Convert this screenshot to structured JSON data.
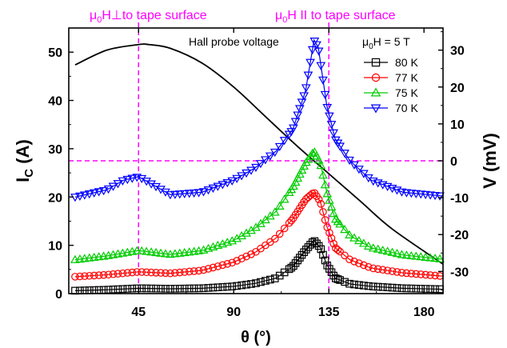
{
  "chart_data": {
    "type": "scatter",
    "xlabel": "θ (°)",
    "ylabel_left": "I",
    "ylabel_left_sub": "C",
    "ylabel_left_unit": " (A)",
    "ylabel_right": "V (mV)",
    "xlim": [
      12,
      189
    ],
    "ylim_left": [
      0,
      55
    ],
    "ylim_right": [
      -36,
      36
    ],
    "x_ticks": [
      45,
      90,
      135,
      180
    ],
    "x_tick_labels": [
      "45",
      "90",
      "135",
      "180"
    ],
    "y_left_ticks": [
      0,
      10,
      20,
      30,
      40,
      50
    ],
    "y_left_tick_labels": [
      "0",
      "10",
      "20",
      "30",
      "40",
      "50"
    ],
    "y_right_ticks": [
      30,
      20,
      10,
      0,
      -10,
      -20,
      -30
    ],
    "y_right_tick_labels": [
      "30",
      "20",
      "10",
      "0",
      "-10",
      "-20",
      "-30"
    ],
    "annotations": {
      "perp_mu": "μ",
      "perp_sub": "0",
      "perp_text": "H⊥to tape surface",
      "par_mu": "μ",
      "par_sub": "0",
      "par_text": "H II to tape surface",
      "hall_label": "Hall probe voltage"
    },
    "reference_lines": {
      "vertical_x": [
        45,
        135
      ],
      "horizontal_y_right": 0,
      "color": "#ff00ff"
    },
    "legend": {
      "title_mu": "μ",
      "title_sub": "0",
      "title_text": "H = 5 T",
      "position": "top-right"
    },
    "series": [
      {
        "name": "80 K",
        "marker": "square",
        "color": "#000000",
        "x": [
          15,
          30,
          45,
          60,
          75,
          90,
          100,
          110,
          118,
          124,
          128,
          131,
          134,
          138,
          145,
          155,
          170,
          189
        ],
        "y": [
          0.6,
          0.8,
          1.1,
          1.0,
          1.1,
          1.5,
          2.1,
          3.2,
          5.6,
          9.0,
          11.0,
          9.5,
          6.0,
          3.2,
          2.0,
          1.5,
          1.1,
          0.9
        ]
      },
      {
        "name": "77 K",
        "marker": "circle",
        "color": "#ff0000",
        "x": [
          15,
          30,
          45,
          60,
          75,
          90,
          100,
          110,
          118,
          124,
          128,
          131,
          134,
          138,
          145,
          155,
          170,
          189
        ],
        "y": [
          3.5,
          3.9,
          4.5,
          4.2,
          4.8,
          6.5,
          8.5,
          11.5,
          15.5,
          19.5,
          21.0,
          19.0,
          14.0,
          9.5,
          7.0,
          5.3,
          4.3,
          3.6
        ]
      },
      {
        "name": "75 K",
        "marker": "triangle-up",
        "color": "#00cc00",
        "x": [
          15,
          30,
          45,
          60,
          75,
          90,
          100,
          110,
          118,
          124,
          128,
          131,
          134,
          138,
          145,
          155,
          170,
          189
        ],
        "y": [
          7.0,
          7.8,
          8.9,
          8.1,
          8.9,
          11.0,
          13.5,
          17.0,
          22.0,
          27.0,
          29.5,
          27.0,
          21.0,
          15.5,
          12.0,
          9.5,
          8.0,
          7.1
        ]
      },
      {
        "name": "70 K",
        "marker": "triangle-down",
        "color": "#0000ff",
        "x": [
          15,
          30,
          38,
          45,
          50,
          60,
          75,
          90,
          100,
          110,
          118,
          124,
          128,
          130,
          132,
          134,
          138,
          145,
          155,
          170,
          189
        ],
        "y": [
          20.0,
          21.5,
          23.5,
          24.2,
          23.0,
          20.5,
          21.0,
          23.5,
          26.0,
          29.5,
          34.0,
          42.0,
          52.5,
          51.0,
          45.0,
          39.0,
          32.0,
          27.5,
          23.5,
          21.0,
          20.2
        ]
      }
    ],
    "hall_voltage": {
      "name": "Hall probe voltage",
      "axis": "right",
      "color": "#000000",
      "x": [
        15,
        30,
        45,
        50,
        60,
        75,
        90,
        105,
        120,
        135,
        150,
        165,
        189
      ],
      "y": [
        26.0,
        30.0,
        31.5,
        31.5,
        30.5,
        26.5,
        20.0,
        12.0,
        4.0,
        -3.5,
        -11.0,
        -18.5,
        -28.0
      ]
    }
  }
}
